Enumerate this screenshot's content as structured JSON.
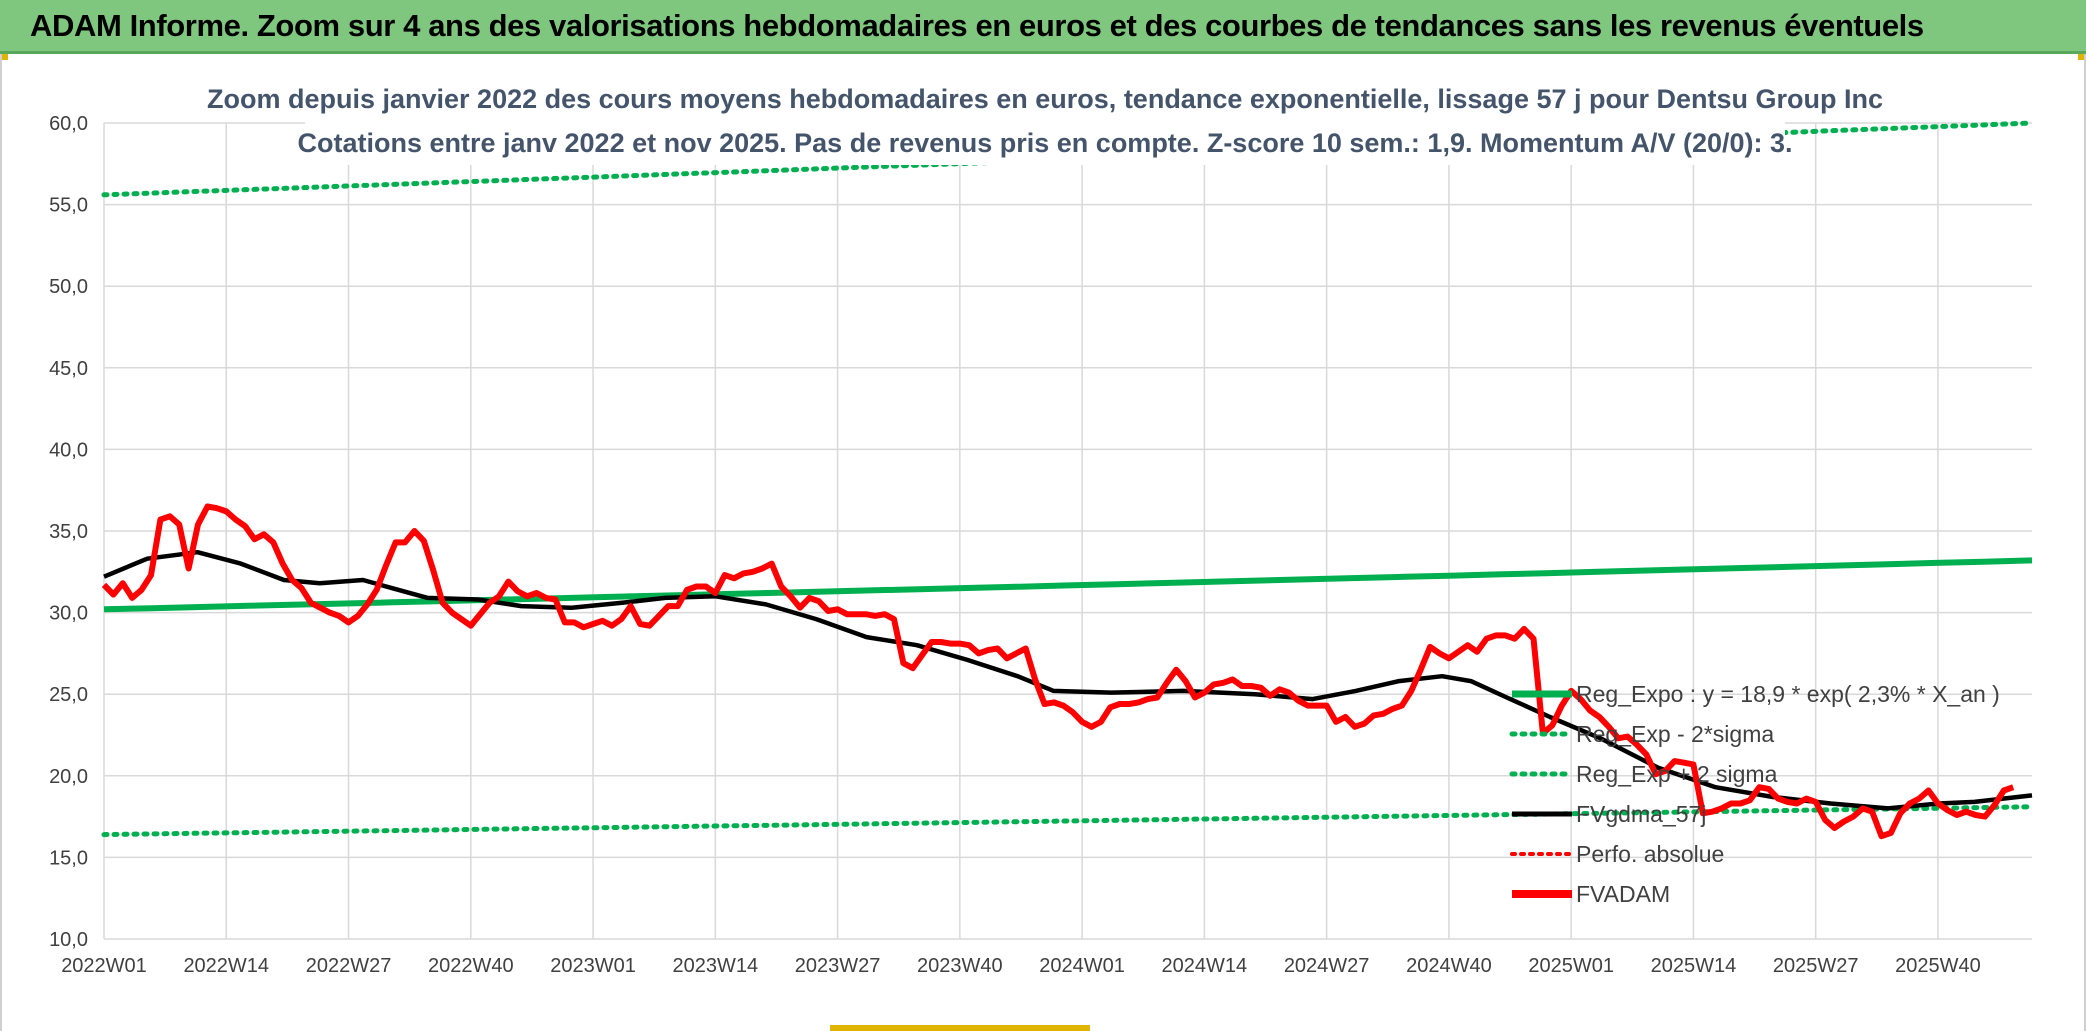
{
  "header": {
    "title": "ADAM Informe. Zoom sur 4 ans des valorisations hebdomadaires en euros et des courbes de tendances sans les revenus éventuels"
  },
  "chart_data": {
    "type": "line",
    "title": "Zoom depuis janvier 2022 des cours moyens hebdomadaires en euros, tendance exponentielle, lissage 57 j pour Dentsu Group Inc",
    "subtitle": "Cotations entre janv 2022 et nov 2025. Pas de revenus pris en compte. Z-score 10 sem.: 1,9. Momentum A/V (20/0): 3.",
    "ylim": [
      10,
      60
    ],
    "y_ticks": [
      "10,0",
      "15,0",
      "20,0",
      "25,0",
      "30,0",
      "35,0",
      "40,0",
      "45,0",
      "50,0",
      "55,0",
      "60,0"
    ],
    "x_tick_labels": [
      "2022W01",
      "2022W14",
      "2022W27",
      "2022W40",
      "2023W01",
      "2023W14",
      "2023W27",
      "2023W40",
      "2024W01",
      "2024W14",
      "2024W27",
      "2024W40",
      "2025W01",
      "2025W14",
      "2025W27",
      "2025W40"
    ],
    "x_weeks_total": 205,
    "grid": true,
    "legend_position": "right",
    "colors": {
      "green": "#00b050",
      "black": "#000000",
      "red": "#ff0000",
      "grid": "#d9d9d9"
    },
    "series": [
      {
        "name": "Reg_Expo : y = 18,9 * exp( 2,3% *  X_an )",
        "style": "solid-green",
        "start": 30.2,
        "end": 33.2
      },
      {
        "name": "Reg_Exp - 2*sigma",
        "style": "dotted-green",
        "start": 16.4,
        "end": 18.1
      },
      {
        "name": "Reg_Exp + 2 sigma",
        "style": "dotted-green",
        "start": 55.6,
        "end": 60.0
      },
      {
        "name": "FVgdma_57j",
        "style": "solid-black",
        "points": [
          [
            0,
            32.2
          ],
          [
            6,
            33.3
          ],
          [
            13,
            33.7
          ],
          [
            19,
            33.0
          ],
          [
            25,
            32.0
          ],
          [
            30,
            31.8
          ],
          [
            36,
            32.0
          ],
          [
            40,
            31.5
          ],
          [
            45,
            30.9
          ],
          [
            52,
            30.8
          ],
          [
            58,
            30.4
          ],
          [
            65,
            30.3
          ],
          [
            72,
            30.6
          ],
          [
            78,
            30.9
          ],
          [
            85,
            31.0
          ],
          [
            92,
            30.5
          ],
          [
            99,
            29.6
          ],
          [
            106,
            28.5
          ],
          [
            113,
            28.0
          ],
          [
            120,
            27.1
          ],
          [
            127,
            26.1
          ],
          [
            132,
            25.2
          ],
          [
            140,
            25.1
          ],
          [
            150,
            25.2
          ],
          [
            160,
            25.0
          ],
          [
            168,
            24.7
          ],
          [
            174,
            25.2
          ],
          [
            180,
            25.8
          ],
          [
            186,
            26.1
          ],
          [
            190,
            25.8
          ],
          [
            195,
            24.8
          ],
          [
            201,
            23.6
          ],
          [
            208,
            22.3
          ],
          [
            216,
            20.5
          ],
          [
            224,
            19.3
          ],
          [
            232,
            18.7
          ],
          [
            240,
            18.3
          ],
          [
            248,
            18.0
          ],
          [
            255,
            18.3
          ],
          [
            260,
            18.4
          ],
          [
            264,
            18.6
          ],
          [
            268,
            18.8
          ]
        ]
      },
      {
        "name": "Perfo. absolue",
        "style": "dotted-red",
        "points": []
      },
      {
        "name": "FVADAM",
        "style": "solid-red",
        "points": [
          [
            0,
            31.7
          ],
          [
            1,
            31.1
          ],
          [
            2,
            31.8
          ],
          [
            3,
            30.9
          ],
          [
            4,
            31.4
          ],
          [
            5,
            32.3
          ],
          [
            6,
            35.7
          ],
          [
            7,
            35.9
          ],
          [
            8,
            35.4
          ],
          [
            9,
            32.7
          ],
          [
            10,
            35.4
          ],
          [
            11,
            36.5
          ],
          [
            12,
            36.4
          ],
          [
            13,
            36.2
          ],
          [
            14,
            35.7
          ],
          [
            15,
            35.3
          ],
          [
            16,
            34.5
          ],
          [
            17,
            34.8
          ],
          [
            18,
            34.3
          ],
          [
            19,
            33.0
          ],
          [
            20,
            32.0
          ],
          [
            21,
            31.5
          ],
          [
            22,
            30.6
          ],
          [
            23,
            30.3
          ],
          [
            24,
            30.0
          ],
          [
            25,
            29.8
          ],
          [
            26,
            29.4
          ],
          [
            27,
            29.8
          ],
          [
            28,
            30.5
          ],
          [
            29,
            31.4
          ],
          [
            30,
            32.9
          ],
          [
            31,
            34.3
          ],
          [
            32,
            34.3
          ],
          [
            33,
            35.0
          ],
          [
            34,
            34.4
          ],
          [
            35,
            32.6
          ],
          [
            36,
            30.6
          ],
          [
            37,
            30.0
          ],
          [
            38,
            29.6
          ],
          [
            39,
            29.2
          ],
          [
            40,
            29.9
          ],
          [
            41,
            30.6
          ],
          [
            42,
            31.0
          ],
          [
            43,
            31.9
          ],
          [
            44,
            31.3
          ],
          [
            45,
            31.0
          ],
          [
            46,
            31.2
          ],
          [
            47,
            30.9
          ],
          [
            48,
            30.8
          ],
          [
            49,
            29.4
          ],
          [
            50,
            29.4
          ],
          [
            51,
            29.1
          ],
          [
            52,
            29.3
          ],
          [
            53,
            29.5
          ],
          [
            54,
            29.2
          ],
          [
            55,
            29.6
          ],
          [
            56,
            30.4
          ],
          [
            57,
            29.3
          ],
          [
            58,
            29.2
          ],
          [
            59,
            29.8
          ],
          [
            60,
            30.4
          ],
          [
            61,
            30.4
          ],
          [
            62,
            31.4
          ],
          [
            63,
            31.6
          ],
          [
            64,
            31.6
          ],
          [
            65,
            31.2
          ],
          [
            66,
            32.3
          ],
          [
            67,
            32.1
          ],
          [
            68,
            32.4
          ],
          [
            69,
            32.5
          ],
          [
            70,
            32.7
          ],
          [
            71,
            33.0
          ],
          [
            72,
            31.6
          ],
          [
            73,
            31.0
          ],
          [
            74,
            30.3
          ],
          [
            75,
            30.9
          ],
          [
            76,
            30.7
          ],
          [
            77,
            30.1
          ],
          [
            78,
            30.2
          ],
          [
            79,
            29.9
          ],
          [
            80,
            29.9
          ],
          [
            81,
            29.9
          ],
          [
            82,
            29.8
          ],
          [
            83,
            29.9
          ],
          [
            84,
            29.6
          ],
          [
            85,
            26.9
          ],
          [
            86,
            26.6
          ],
          [
            87,
            27.4
          ],
          [
            88,
            28.2
          ],
          [
            89,
            28.2
          ],
          [
            90,
            28.1
          ],
          [
            91,
            28.1
          ],
          [
            92,
            28.0
          ],
          [
            93,
            27.5
          ],
          [
            94,
            27.7
          ],
          [
            95,
            27.8
          ],
          [
            96,
            27.2
          ],
          [
            97,
            27.5
          ],
          [
            98,
            27.8
          ],
          [
            99,
            25.9
          ],
          [
            100,
            24.4
          ],
          [
            101,
            24.5
          ],
          [
            102,
            24.3
          ],
          [
            103,
            23.9
          ],
          [
            104,
            23.3
          ],
          [
            105,
            23.0
          ],
          [
            106,
            23.3
          ],
          [
            107,
            24.2
          ],
          [
            108,
            24.4
          ],
          [
            109,
            24.4
          ],
          [
            110,
            24.5
          ],
          [
            111,
            24.7
          ],
          [
            112,
            24.8
          ],
          [
            113,
            25.7
          ],
          [
            114,
            26.5
          ],
          [
            115,
            25.8
          ],
          [
            116,
            24.8
          ],
          [
            117,
            25.1
          ],
          [
            118,
            25.6
          ],
          [
            119,
            25.7
          ],
          [
            120,
            25.9
          ],
          [
            121,
            25.5
          ],
          [
            122,
            25.5
          ],
          [
            123,
            25.4
          ],
          [
            124,
            24.9
          ],
          [
            125,
            25.3
          ],
          [
            126,
            25.1
          ],
          [
            127,
            24.6
          ],
          [
            128,
            24.3
          ],
          [
            129,
            24.3
          ],
          [
            130,
            24.3
          ],
          [
            131,
            23.3
          ],
          [
            132,
            23.6
          ],
          [
            133,
            23.0
          ],
          [
            134,
            23.2
          ],
          [
            135,
            23.7
          ],
          [
            136,
            23.8
          ],
          [
            137,
            24.1
          ],
          [
            138,
            24.3
          ],
          [
            139,
            25.2
          ],
          [
            140,
            26.5
          ],
          [
            141,
            27.9
          ],
          [
            142,
            27.5
          ],
          [
            143,
            27.2
          ],
          [
            144,
            27.6
          ],
          [
            145,
            28.0
          ],
          [
            146,
            27.6
          ],
          [
            147,
            28.4
          ],
          [
            148,
            28.6
          ],
          [
            149,
            28.6
          ],
          [
            150,
            28.4
          ],
          [
            151,
            29.0
          ],
          [
            152,
            28.4
          ],
          [
            153,
            22.6
          ],
          [
            154,
            23.1
          ],
          [
            155,
            24.3
          ],
          [
            156,
            25.2
          ],
          [
            157,
            24.7
          ],
          [
            158,
            24.0
          ],
          [
            159,
            23.6
          ],
          [
            160,
            23.0
          ],
          [
            161,
            22.3
          ],
          [
            162,
            22.4
          ],
          [
            163,
            21.9
          ],
          [
            164,
            21.3
          ],
          [
            165,
            20.1
          ],
          [
            166,
            20.3
          ],
          [
            167,
            20.9
          ],
          [
            168,
            20.8
          ],
          [
            169,
            20.7
          ],
          [
            170,
            17.7
          ],
          [
            171,
            17.8
          ],
          [
            172,
            18.0
          ],
          [
            173,
            18.3
          ],
          [
            174,
            18.3
          ],
          [
            175,
            18.5
          ],
          [
            176,
            19.3
          ],
          [
            177,
            19.2
          ],
          [
            178,
            18.6
          ],
          [
            179,
            18.4
          ],
          [
            180,
            18.3
          ],
          [
            181,
            18.6
          ],
          [
            182,
            18.4
          ],
          [
            183,
            17.3
          ],
          [
            184,
            16.8
          ],
          [
            185,
            17.2
          ],
          [
            186,
            17.5
          ],
          [
            187,
            18.0
          ],
          [
            188,
            17.8
          ],
          [
            189,
            16.3
          ],
          [
            190,
            16.5
          ],
          [
            191,
            17.7
          ],
          [
            192,
            18.3
          ],
          [
            193,
            18.6
          ],
          [
            194,
            19.1
          ],
          [
            195,
            18.3
          ],
          [
            196,
            17.9
          ],
          [
            197,
            17.6
          ],
          [
            198,
            17.8
          ],
          [
            199,
            17.6
          ],
          [
            200,
            17.5
          ],
          [
            201,
            18.2
          ],
          [
            202,
            19.1
          ],
          [
            203,
            19.3
          ]
        ]
      }
    ]
  }
}
